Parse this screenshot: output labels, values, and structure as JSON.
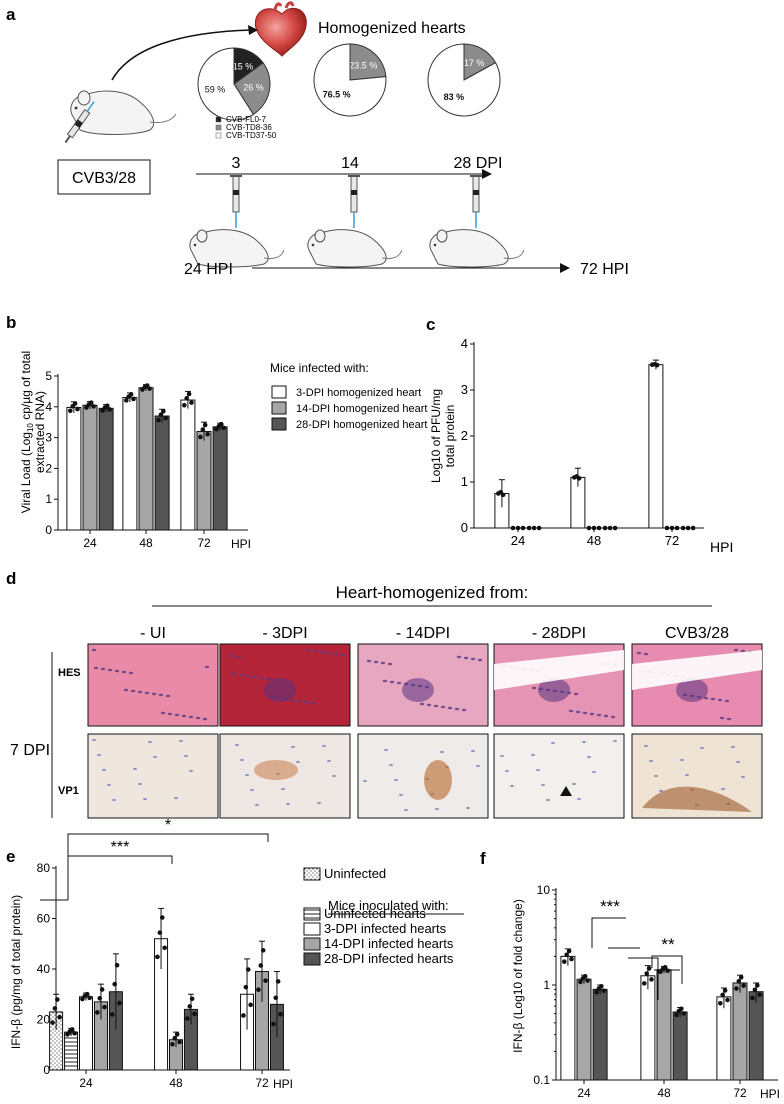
{
  "panels": {
    "a": {
      "label": "a",
      "title": "Homogenized hearts",
      "inoculum": "CVB3/28",
      "pies": [
        {
          "slices": [
            {
              "label": "15 %",
              "value": 15,
              "color": "#222222"
            },
            {
              "label": "26 %",
              "value": 26,
              "color": "#8c8c8c"
            },
            {
              "label": "59 %",
              "value": 59,
              "color": "#ffffff"
            }
          ]
        },
        {
          "slices": [
            {
              "label": "23.5 %",
              "value": 23.5,
              "color": "#8c8c8c"
            },
            {
              "label": "76.5 %",
              "value": 76.5,
              "color": "#ffffff"
            }
          ]
        },
        {
          "slices": [
            {
              "label": "17 %",
              "value": 17,
              "color": "#8c8c8c"
            },
            {
              "label": "83 %",
              "value": 83,
              "color": "#ffffff"
            }
          ]
        }
      ],
      "legend": [
        {
          "label": "CVB-FL0-7",
          "color": "#222222"
        },
        {
          "label": "CVB-TD8-36",
          "color": "#8c8c8c"
        },
        {
          "label": "CVB-TD37-50",
          "color": "#ffffff"
        }
      ],
      "timeline_dpi": [
        "3",
        "14",
        "28 DPI"
      ],
      "timeline_hpi": [
        "24 HPI",
        "72 HPI"
      ]
    },
    "b": {
      "label": "b",
      "ylabel_line1": "Viral Load (Log",
      "ylabel_sub": "10",
      "ylabel_rest": " cp/µg of total",
      "ylabel_line2": "extracted RNA)",
      "legend_title": "Mice infected with:",
      "xunit": "HPI"
    },
    "c": {
      "label": "c",
      "ylabel_line1": "Log10 of PFU/mg",
      "ylabel_line2": "total protein",
      "xunit": "HPI"
    },
    "d": {
      "label": "d",
      "header": "Heart-homogenized from:",
      "columns": [
        "- UI",
        "- 3DPI",
        "- 14DPI",
        "- 28DPI",
        "CVB3/28"
      ],
      "rows": [
        "HES",
        "VP1"
      ],
      "side_label": "7 DPI"
    },
    "e": {
      "label": "e",
      "ylabel": "IFN-β (pg/mg of total protein)",
      "legend_uninfected": "Uninfected",
      "legend_title": "Mice inoculated with:",
      "sig_48": "***",
      "sig_72": "*",
      "xunit": "HPI"
    },
    "f": {
      "label": "f",
      "ylabel": "IFN-β (Log10 of fold change)",
      "sig_24": "***",
      "sig_48": "**",
      "xunit": "HPI"
    }
  },
  "chart_data": [
    {
      "id": "b",
      "type": "bar",
      "categories": [
        "24",
        "48",
        "72"
      ],
      "ylim": [
        0,
        5
      ],
      "yticks": [
        0,
        1,
        2,
        3,
        4,
        5
      ],
      "series": [
        {
          "name": "3-DPI homogenized heart",
          "color": "#ffffff",
          "values": [
            3.98,
            4.3,
            4.22
          ],
          "err": [
            0.18,
            0.15,
            0.28
          ]
        },
        {
          "name": "14-DPI homogenized heart",
          "color": "#a6a6a6",
          "values": [
            4.05,
            4.62,
            3.2
          ],
          "err": [
            0.12,
            0.1,
            0.3
          ]
        },
        {
          "name": "28-DPI homogenized heart",
          "color": "#555555",
          "values": [
            3.95,
            3.7,
            3.35
          ],
          "err": [
            0.12,
            0.22,
            0.12
          ]
        }
      ]
    },
    {
      "id": "c",
      "type": "bar",
      "categories": [
        "24",
        "48",
        "72"
      ],
      "ylim": [
        0,
        4
      ],
      "yticks": [
        0,
        1,
        2,
        3,
        4
      ],
      "series": [
        {
          "name": "",
          "color": "#ffffff",
          "values": [
            0.75,
            1.1,
            3.55
          ],
          "err": [
            0.3,
            0.2,
            0.1
          ]
        },
        {
          "name": "",
          "color": "#ffffff",
          "values": [
            0,
            0,
            0
          ],
          "err": [
            0,
            0,
            0
          ]
        },
        {
          "name": "",
          "color": "#ffffff",
          "values": [
            0,
            0,
            0
          ],
          "err": [
            0,
            0,
            0
          ]
        }
      ]
    },
    {
      "id": "e",
      "type": "bar",
      "categories": [
        "24",
        "48",
        "72"
      ],
      "ylim": [
        0,
        80
      ],
      "yticks": [
        0,
        20,
        40,
        60,
        80
      ],
      "series": [
        {
          "name": "Uninfected",
          "color": "#ffffff",
          "values": [
            23,
            null,
            null
          ],
          "err": [
            7,
            null,
            null
          ]
        },
        {
          "name": "Uninfected hearts",
          "color": "#ffffff",
          "values": [
            15,
            null,
            null
          ],
          "err": [
            1.5,
            null,
            null
          ]
        },
        {
          "name": "3-DPI infected hearts",
          "color": "#ffffff",
          "values": [
            29,
            52,
            30
          ],
          "err": [
            1.5,
            12,
            14
          ]
        },
        {
          "name": "14-DPI infected hearts",
          "color": "#a6a6a6",
          "values": [
            27,
            12,
            39
          ],
          "err": [
            7,
            3,
            12
          ]
        },
        {
          "name": "28-DPI infected hearts",
          "color": "#555555",
          "values": [
            31,
            24,
            26
          ],
          "err": [
            15,
            6,
            13
          ]
        }
      ]
    },
    {
      "id": "f",
      "type": "bar",
      "scale": "log",
      "categories": [
        "24",
        "48",
        "72"
      ],
      "ylim": [
        0.1,
        10
      ],
      "yticks": [
        0.1,
        1,
        10
      ],
      "series": [
        {
          "name": "3-DPI infected hearts",
          "color": "#ffffff",
          "values": [
            2.0,
            1.25,
            0.75
          ],
          "err": [
            0.4,
            0.35,
            0.18
          ]
        },
        {
          "name": "14-DPI infected hearts",
          "color": "#a6a6a6",
          "values": [
            1.15,
            1.45,
            1.05
          ],
          "err": [
            0.12,
            0.12,
            0.22
          ]
        },
        {
          "name": "28-DPI infected hearts",
          "color": "#555555",
          "values": [
            0.9,
            0.52,
            0.85
          ],
          "err": [
            0.1,
            0.06,
            0.2
          ]
        }
      ]
    }
  ]
}
